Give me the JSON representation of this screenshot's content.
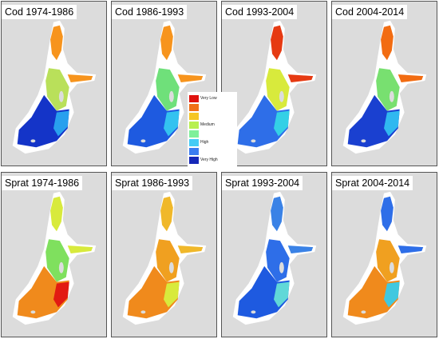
{
  "panels": [
    {
      "title": "Cod 1974-1986",
      "north": "#f7941d",
      "mid": "#b9e05a",
      "south": "#1434c8",
      "accent": "#28a0ee"
    },
    {
      "title": "Cod 1986-1993",
      "north": "#f7941d",
      "mid": "#6fe07a",
      "south": "#1e5ae0",
      "accent": "#33c2f0"
    },
    {
      "title": "Cod 1993-2004",
      "north": "#e63a12",
      "mid": "#d8ea3c",
      "south": "#2e6ee8",
      "accent": "#34d0e6"
    },
    {
      "title": "Cod 2004-2014",
      "north": "#f26c12",
      "mid": "#78e070",
      "south": "#1a40d0",
      "accent": "#30b8f0"
    },
    {
      "title": "Sprat 1974-1986",
      "north": "#d8ea3c",
      "mid": "#7fe05e",
      "south": "#f08a1c",
      "accent": "#e21a12"
    },
    {
      "title": "Sprat 1986-1993",
      "north": "#f0b82a",
      "mid": "#f0a020",
      "south": "#f08a1c",
      "accent": "#d8ea3c"
    },
    {
      "title": "Sprat 1993-2004",
      "north": "#3a82e6",
      "mid": "#2e6ee8",
      "south": "#1e5ae0",
      "accent": "#60d8d8"
    },
    {
      "title": "Sprat 2004-2014",
      "north": "#2e6ee8",
      "mid": "#f0a020",
      "south": "#f08a1c",
      "accent": "#40c8e0"
    }
  ],
  "legend": {
    "items": [
      {
        "label": "Very Low",
        "color": "#e0120e"
      },
      {
        "label": "",
        "color": "#f07018"
      },
      {
        "label": "",
        "color": "#f5c623"
      },
      {
        "label": "Medium",
        "color": "#b8f050"
      },
      {
        "label": "",
        "color": "#7ff09a"
      },
      {
        "label": "High",
        "color": "#44ccf5"
      },
      {
        "label": "",
        "color": "#3a7cf0"
      },
      {
        "label": "Very High",
        "color": "#1628b8"
      }
    ]
  }
}
